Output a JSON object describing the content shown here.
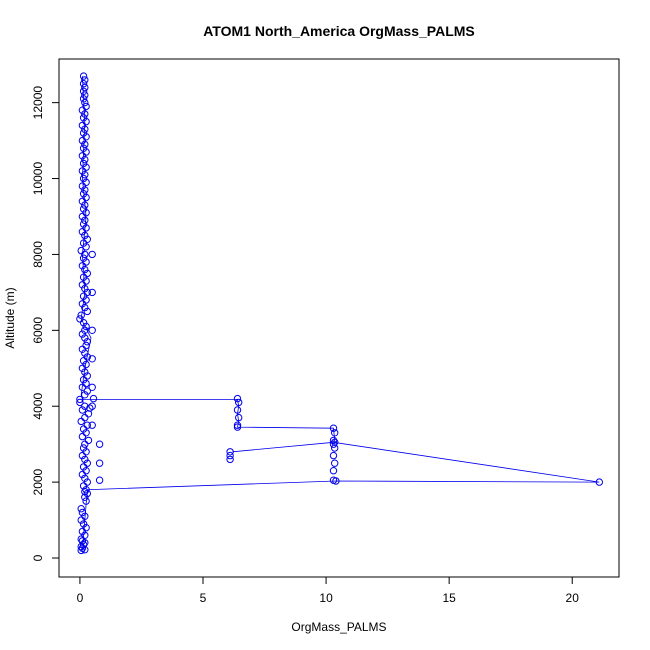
{
  "chart_data": {
    "type": "scatter",
    "title": "ATOM1 North_America OrgMass_PALMS",
    "xlabel": "OrgMass_PALMS",
    "ylabel": "Altitude (m)",
    "xlim": [
      -0.85,
      21.9
    ],
    "ylim": [
      -500,
      13150
    ],
    "x_ticks": [
      0,
      5,
      10,
      15,
      20
    ],
    "y_ticks": [
      0,
      2000,
      4000,
      6000,
      8000,
      10000,
      12000
    ],
    "x_tick_labels": [
      "0",
      "5",
      "10",
      "15",
      "20"
    ],
    "y_tick_labels": [
      "0",
      "2000",
      "4000",
      "6000",
      "8000",
      "10000",
      "12000"
    ],
    "grid": false,
    "legend": "none",
    "color": "#0000ee",
    "series": [
      {
        "points": [
          [
            0.05,
            200
          ],
          [
            0.2,
            220
          ],
          [
            0.1,
            260
          ],
          [
            0.05,
            300
          ],
          [
            0.15,
            350
          ],
          [
            0.2,
            400
          ],
          [
            0.1,
            450
          ],
          [
            0.05,
            500
          ],
          [
            0.2,
            600
          ],
          [
            0.1,
            700
          ],
          [
            0.25,
            800
          ],
          [
            0.15,
            900
          ],
          [
            0.05,
            1000
          ],
          [
            0.2,
            1100
          ],
          [
            0.1,
            1200
          ],
          [
            0.05,
            1300
          ],
          [
            0.25,
            1500
          ],
          [
            0.2,
            1600
          ],
          [
            0.3,
            1700
          ],
          [
            0.2,
            1750
          ],
          [
            0.25,
            1800
          ],
          [
            0.15,
            1900
          ],
          [
            0.3,
            2000
          ],
          [
            0.2,
            2100
          ],
          [
            0.1,
            2200
          ],
          [
            0.25,
            2300
          ],
          [
            0.15,
            2400
          ],
          [
            0.3,
            2500
          ],
          [
            0.2,
            2600
          ],
          [
            0.1,
            2700
          ],
          [
            0.25,
            2800
          ],
          [
            0.15,
            2900
          ],
          [
            0.2,
            3000
          ],
          [
            0.35,
            3100
          ],
          [
            0.1,
            3200
          ],
          [
            0.25,
            3300
          ],
          [
            0.15,
            3400
          ],
          [
            0.3,
            3500
          ],
          [
            0.05,
            3600
          ],
          [
            0.2,
            3700
          ],
          [
            0.35,
            3800
          ],
          [
            0.1,
            3900
          ],
          [
            0.4,
            3950
          ],
          [
            0.2,
            4000
          ],
          [
            0.0,
            4100
          ],
          [
            0.0,
            4180
          ],
          [
            0.2,
            4300
          ],
          [
            0.3,
            4400
          ],
          [
            0.1,
            4500
          ],
          [
            0.25,
            4600
          ],
          [
            0.15,
            4700
          ],
          [
            0.3,
            4800
          ],
          [
            0.2,
            4900
          ],
          [
            0.1,
            5000
          ],
          [
            0.25,
            5100
          ],
          [
            0.15,
            5200
          ],
          [
            0.3,
            5300
          ],
          [
            0.2,
            5400
          ],
          [
            0.1,
            5500
          ],
          [
            0.25,
            5600
          ],
          [
            0.3,
            5700
          ],
          [
            0.2,
            5800
          ],
          [
            0.1,
            5900
          ],
          [
            0.2,
            6000
          ],
          [
            0.25,
            6100
          ],
          [
            0.15,
            6200
          ],
          [
            0.0,
            6300
          ],
          [
            0.05,
            6400
          ],
          [
            0.3,
            6500
          ],
          [
            0.2,
            6600
          ],
          [
            0.1,
            6700
          ],
          [
            0.25,
            6800
          ],
          [
            0.15,
            6900
          ],
          [
            0.3,
            7000
          ],
          [
            0.2,
            7100
          ],
          [
            0.1,
            7200
          ],
          [
            0.25,
            7300
          ],
          [
            0.15,
            7400
          ],
          [
            0.3,
            7500
          ],
          [
            0.2,
            7600
          ],
          [
            0.1,
            7700
          ],
          [
            0.25,
            7800
          ],
          [
            0.15,
            7900
          ],
          [
            0.2,
            8000
          ],
          [
            0.05,
            8100
          ],
          [
            0.25,
            8200
          ],
          [
            0.15,
            8300
          ],
          [
            0.3,
            8400
          ],
          [
            0.2,
            8500
          ],
          [
            0.1,
            8600
          ],
          [
            0.25,
            8700
          ],
          [
            0.15,
            8800
          ],
          [
            0.2,
            8900
          ],
          [
            0.1,
            9000
          ],
          [
            0.25,
            9100
          ],
          [
            0.15,
            9200
          ],
          [
            0.2,
            9300
          ],
          [
            0.1,
            9400
          ],
          [
            0.25,
            9500
          ],
          [
            0.15,
            9600
          ],
          [
            0.2,
            9700
          ],
          [
            0.1,
            9800
          ],
          [
            0.25,
            9900
          ],
          [
            0.15,
            10000
          ],
          [
            0.2,
            10100
          ],
          [
            0.1,
            10200
          ],
          [
            0.25,
            10300
          ],
          [
            0.15,
            10400
          ],
          [
            0.2,
            10500
          ],
          [
            0.1,
            10600
          ],
          [
            0.25,
            10700
          ],
          [
            0.15,
            10800
          ],
          [
            0.2,
            10900
          ],
          [
            0.1,
            11000
          ],
          [
            0.25,
            11100
          ],
          [
            0.15,
            11200
          ],
          [
            0.2,
            11300
          ],
          [
            0.1,
            11400
          ],
          [
            0.25,
            11500
          ],
          [
            0.15,
            11600
          ],
          [
            0.2,
            11700
          ],
          [
            0.1,
            11800
          ],
          [
            0.25,
            11900
          ],
          [
            0.2,
            12000
          ],
          [
            0.15,
            12100
          ],
          [
            0.2,
            12200
          ],
          [
            0.15,
            12300
          ],
          [
            0.2,
            12400
          ],
          [
            0.15,
            12500
          ],
          [
            0.2,
            12600
          ],
          [
            0.15,
            12700
          ],
          [
            0.5,
            5250
          ],
          [
            0.5,
            4500
          ],
          [
            0.55,
            4200
          ],
          [
            6.4,
            4200
          ],
          [
            6.45,
            4100
          ],
          [
            6.4,
            3900
          ],
          [
            6.45,
            3700
          ],
          [
            6.4,
            3500
          ],
          [
            6.4,
            3450
          ],
          [
            10.3,
            3420
          ],
          [
            10.35,
            3300
          ],
          [
            10.3,
            3100
          ],
          [
            10.35,
            3050
          ],
          [
            6.1,
            2800
          ],
          [
            6.1,
            2700
          ],
          [
            6.1,
            2600
          ],
          [
            10.3,
            3000
          ],
          [
            10.35,
            2900
          ],
          [
            10.3,
            2700
          ],
          [
            10.35,
            2500
          ],
          [
            10.3,
            2300
          ],
          [
            10.3,
            2050
          ],
          [
            21.1,
            2000
          ],
          [
            10.4,
            2030
          ],
          [
            0.8,
            3000
          ],
          [
            0.8,
            2500
          ],
          [
            0.8,
            2050
          ],
          [
            0.5,
            4000
          ],
          [
            0.5,
            3500
          ],
          [
            0.5,
            8000
          ],
          [
            0.5,
            7000
          ],
          [
            0.5,
            6000
          ]
        ],
        "path": [
          [
            0.1,
            12700
          ],
          [
            0.2,
            11500
          ],
          [
            0.1,
            10000
          ],
          [
            0.25,
            9000
          ],
          [
            0.1,
            8000
          ],
          [
            0.2,
            7000
          ],
          [
            0.05,
            6300
          ],
          [
            0.45,
            5800
          ],
          [
            0.2,
            5000
          ],
          [
            0.05,
            4300
          ],
          [
            0.1,
            4180
          ],
          [
            6.4,
            4180
          ],
          [
            6.45,
            4000
          ],
          [
            6.4,
            3800
          ],
          [
            6.45,
            3600
          ],
          [
            6.4,
            3450
          ],
          [
            10.3,
            3420
          ],
          [
            10.35,
            3100
          ],
          [
            10.3,
            3050
          ],
          [
            6.2,
            2800
          ],
          [
            10.3,
            3050
          ],
          [
            21.1,
            2000
          ],
          [
            10.4,
            2030
          ],
          [
            0.3,
            1800
          ],
          [
            0.2,
            1000
          ],
          [
            0.1,
            200
          ]
        ]
      }
    ]
  }
}
